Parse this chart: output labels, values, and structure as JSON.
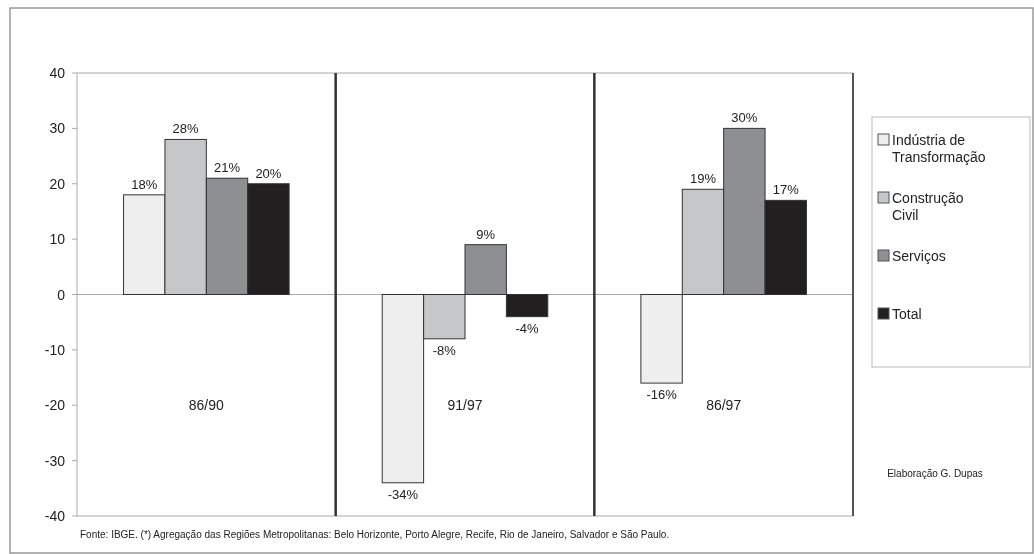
{
  "chart_data": {
    "type": "bar",
    "categories": [
      "86/90",
      "91/97",
      "86/97"
    ],
    "series": [
      {
        "name": "Indústria de Transformação",
        "color": "#eeeeee",
        "values": [
          18,
          -34,
          -16
        ],
        "value_labels": [
          "18%",
          "-34%",
          "-16%"
        ]
      },
      {
        "name": "Construção Civil",
        "color": "#c6c7c9",
        "values": [
          28,
          -8,
          19
        ],
        "value_labels": [
          "28%",
          "-8%",
          "19%"
        ]
      },
      {
        "name": "Serviços",
        "color": "#8e8f92",
        "values": [
          21,
          9,
          30
        ],
        "value_labels": [
          "21%",
          "9%",
          "30%"
        ]
      },
      {
        "name": "Total",
        "color": "#231f20",
        "values": [
          20,
          -4,
          17
        ],
        "value_labels": [
          "20%",
          "-4%",
          "17%"
        ]
      }
    ],
    "ylim": [
      -40,
      40
    ],
    "yticks": [
      -40,
      -30,
      -20,
      -10,
      0,
      10,
      20,
      30,
      40
    ],
    "grid": false,
    "legend": "right",
    "annotations": [
      "Elaboração G. Dupas",
      "Fonte: IBGE. (*) Agregação das Regiões Metropolitanas: Belo Horizonte, Porto Alegre, Recife, Rio de Janeiro, Salvador e São Paulo."
    ]
  }
}
